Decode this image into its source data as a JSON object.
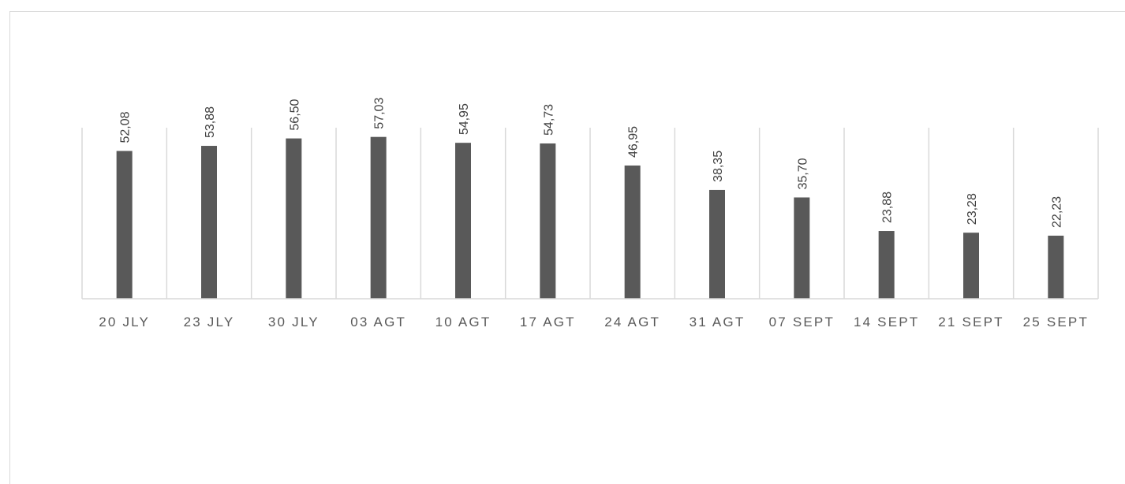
{
  "chart_data": {
    "type": "bar",
    "title": "",
    "xlabel": "",
    "ylabel": "",
    "categories": [
      "20 JLY",
      "23 JLY",
      "30 JLY",
      "03 AGT",
      "10 AGT",
      "17 AGT",
      "24 AGT",
      "31 AGT",
      "07 SEPT",
      "14 SEPT",
      "21 SEPT",
      "25 SEPT"
    ],
    "values": [
      52.08,
      53.88,
      56.5,
      57.03,
      54.95,
      54.73,
      46.95,
      38.35,
      35.7,
      23.88,
      23.28,
      22.23
    ],
    "data_labels": [
      "52,08",
      "53,88",
      "56,50",
      "57,03",
      "54,95",
      "54,73",
      "46,95",
      "38,35",
      "35,70",
      "23,88",
      "23,28",
      "22,23"
    ],
    "ylim": [
      0,
      60
    ],
    "grid": "vertical category separators",
    "legend": "none",
    "bar_color": "#595959"
  }
}
